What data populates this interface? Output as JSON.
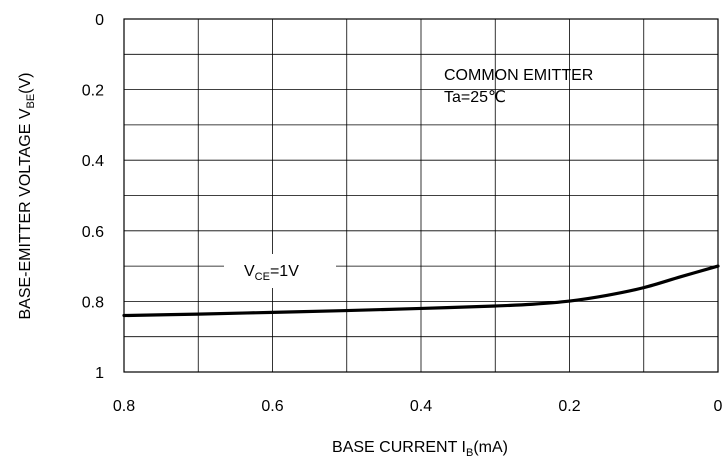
{
  "chart_data": {
    "type": "line",
    "title": "",
    "xlabel": {
      "text": "BASE CURRENT I",
      "sub": "B",
      "suffix": "(mA)"
    },
    "ylabel": {
      "text": "BASE-EMITTER VOLTAGE V",
      "sub": "BE",
      "suffix": "(V)"
    },
    "x_reversed": true,
    "y_reversed": true,
    "xlim": [
      0.8,
      0
    ],
    "ylim": [
      0,
      1
    ],
    "xticks": [
      0.8,
      0.6,
      0.4,
      0.2,
      0
    ],
    "xtick_labels": [
      "0.8",
      "0.6",
      "0.4",
      "0.2",
      "0"
    ],
    "yticks": [
      0,
      0.2,
      0.4,
      0.6,
      0.8,
      1
    ],
    "ytick_labels": [
      "0",
      "0.2",
      "0.4",
      "0.6",
      "0.8",
      "1"
    ],
    "x_grid_step": 0.1,
    "y_grid_step": 0.1,
    "grid": true,
    "annotations": {
      "condition_line1": "COMMON EMITTER",
      "condition_line2": "Ta=25℃"
    },
    "series": [
      {
        "label": {
          "text": "V",
          "sub": "CE",
          "suffix": "=1V"
        },
        "color": "#000000",
        "points": [
          [
            0.8,
            0.84
          ],
          [
            0.7,
            0.836
          ],
          [
            0.6,
            0.831
          ],
          [
            0.5,
            0.826
          ],
          [
            0.4,
            0.82
          ],
          [
            0.3,
            0.813
          ],
          [
            0.25,
            0.808
          ],
          [
            0.2,
            0.799
          ],
          [
            0.15,
            0.783
          ],
          [
            0.1,
            0.761
          ],
          [
            0.05,
            0.73
          ],
          [
            0.0,
            0.7
          ]
        ]
      }
    ]
  }
}
